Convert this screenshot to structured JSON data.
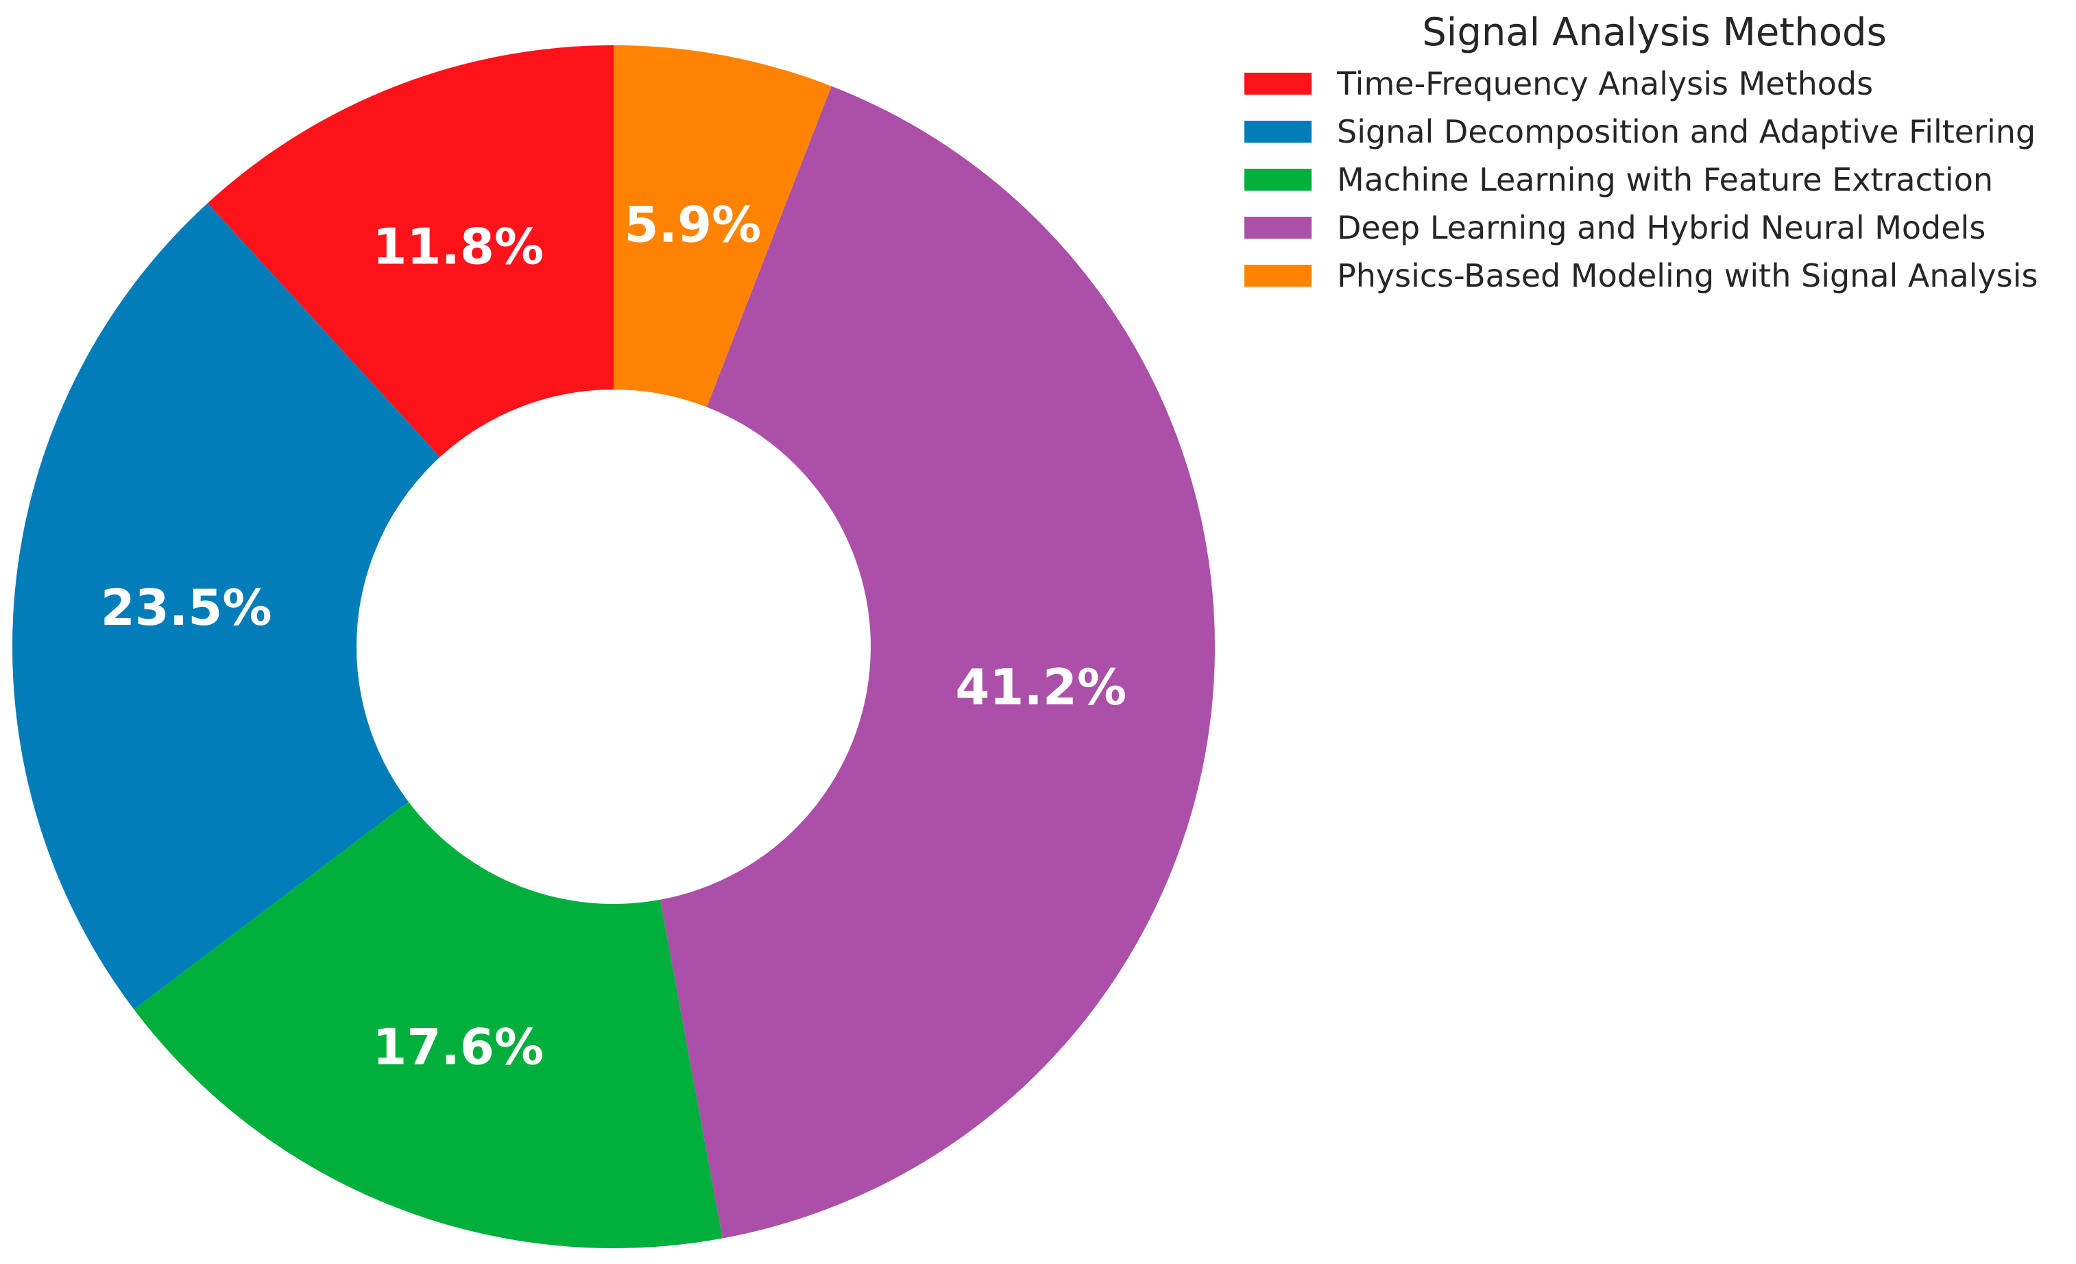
{
  "chart_data": {
    "type": "pie",
    "donut": true,
    "start_angle_deg": 90,
    "direction": "counterclockwise",
    "legend": {
      "title": "Signal Analysis Methods",
      "placement": "top-right"
    },
    "slices": [
      {
        "name": "Time-Frequency Analysis Methods",
        "value": 11.8,
        "label": "11.8%",
        "color": "#ff131a"
      },
      {
        "name": "Signal Decomposition and Adaptive Filtering",
        "value": 23.5,
        "label": "23.5%",
        "color": "#027dba"
      },
      {
        "name": "Machine Learning with Feature Extraction",
        "value": 17.6,
        "label": "17.6%",
        "color": "#00af3c"
      },
      {
        "name": "Deep Learning and Hybrid Neural Models",
        "value": 41.2,
        "label": "41.2%",
        "color": "#ab4fa8"
      },
      {
        "name": "Physics-Based Modeling with Signal Analysis",
        "value": 5.9,
        "label": "5.9%",
        "color": "#ff8300"
      }
    ]
  }
}
